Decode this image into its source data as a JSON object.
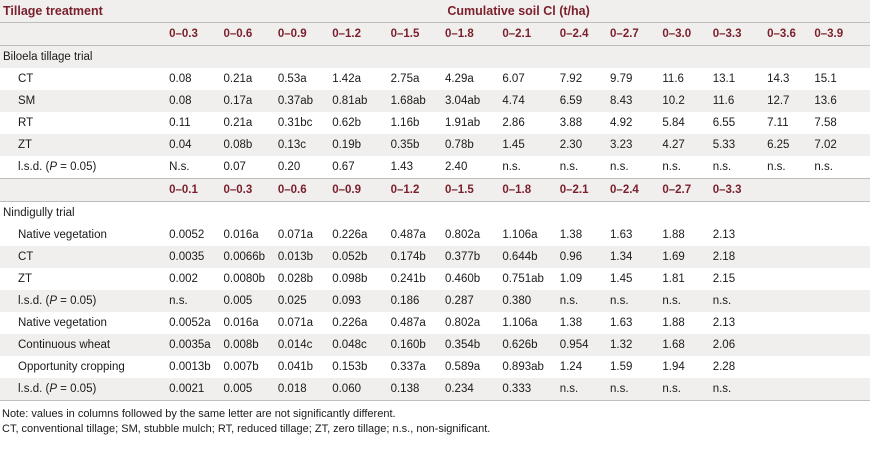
{
  "header": {
    "tillage_treatment": "Tillage treatment",
    "cumulative": "Cumulative soil Cl (t/ha)"
  },
  "biloela": {
    "section_label": "Biloela tillage trial",
    "depths": [
      "0–0.3",
      "0–0.6",
      "0–0.9",
      "0–1.2",
      "0–1.5",
      "0–1.8",
      "0–2.1",
      "0–2.4",
      "0–2.7",
      "0–3.0",
      "0–3.3",
      "0–3.6",
      "0–3.9"
    ],
    "rows": [
      {
        "label": "CT",
        "values": [
          "0.08",
          "0.21a",
          "0.53a",
          "1.42a",
          "2.75a",
          "4.29a",
          "6.07",
          "7.92",
          "9.79",
          "11.6",
          "13.1",
          "14.3",
          "15.1"
        ]
      },
      {
        "label": "SM",
        "values": [
          "0.08",
          "0.17a",
          "0.37ab",
          "0.81ab",
          "1.68ab",
          "3.04ab",
          "4.74",
          "6.59",
          "8.43",
          "10.2",
          "11.6",
          "12.7",
          "13.6"
        ]
      },
      {
        "label": "RT",
        "values": [
          "0.11",
          "0.21a",
          "0.31bc",
          "0.62b",
          "1.16b",
          "1.91ab",
          "2.86",
          "3.88",
          "4.92",
          "5.84",
          "6.55",
          "7.11",
          "7.58"
        ]
      },
      {
        "label": "ZT",
        "values": [
          "0.04",
          "0.08b",
          "0.13c",
          "0.19b",
          "0.35b",
          "0.78b",
          "1.45",
          "2.30",
          "3.23",
          "4.27",
          "5.33",
          "6.25",
          "7.02"
        ]
      },
      {
        "label_prefix": "l.s.d. (",
        "label_var": "P",
        "label_suffix": " = 0.05)",
        "values": [
          "N.s.",
          "0.07",
          "0.20",
          "0.67",
          "1.43",
          "2.40",
          "n.s.",
          "n.s.",
          "n.s.",
          "n.s.",
          "n.s.",
          "n.s.",
          "n.s."
        ]
      }
    ]
  },
  "nindigully": {
    "section_label": "Nindigully trial",
    "depths": [
      "0–0.1",
      "0–0.3",
      "0–0.6",
      "0–0.9",
      "0–1.2",
      "0–1.5",
      "0–1.8",
      "0–2.1",
      "0–2.4",
      "0–2.7",
      "0–3.3"
    ],
    "rows": [
      {
        "label": "Native vegetation",
        "values": [
          "0.0052",
          "0.016a",
          "0.071a",
          "0.226a",
          "0.487a",
          "0.802a",
          "1.106a",
          "1.38",
          "1.63",
          "1.88",
          "2.13"
        ]
      },
      {
        "label": "CT",
        "values": [
          "0.0035",
          "0.0066b",
          "0.013b",
          "0.052b",
          "0.174b",
          "0.377b",
          "0.644b",
          "0.96",
          "1.34",
          "1.69",
          "2.18"
        ]
      },
      {
        "label": "ZT",
        "values": [
          "0.002",
          "0.0080b",
          "0.028b",
          "0.098b",
          "0.241b",
          "0.460b",
          "0.751ab",
          "1.09",
          "1.45",
          "1.81",
          "2.15"
        ]
      },
      {
        "label_prefix": "l.s.d. (",
        "label_var": "P",
        "label_suffix": " = 0.05)",
        "values": [
          "n.s.",
          "0.005",
          "0.025",
          "0.093",
          "0.186",
          "0.287",
          "0.380",
          "n.s.",
          "n.s.",
          "n.s.",
          "n.s."
        ]
      },
      {
        "label": "Native vegetation",
        "values": [
          "0.0052a",
          "0.016a",
          "0.071a",
          "0.226a",
          "0.487a",
          "0.802a",
          "1.106a",
          "1.38",
          "1.63",
          "1.88",
          "2.13"
        ]
      },
      {
        "label": "Continuous wheat",
        "values": [
          "0.0035a",
          "0.008b",
          "0.014c",
          "0.048c",
          "0.160b",
          "0.354b",
          "0.626b",
          "0.954",
          "1.32",
          "1.68",
          "2.06"
        ]
      },
      {
        "label": "Opportunity cropping",
        "values": [
          "0.0013b",
          "0.007b",
          "0.041b",
          "0.153b",
          "0.337a",
          "0.589a",
          "0.893ab",
          "1.24",
          "1.59",
          "1.94",
          "2.28"
        ]
      },
      {
        "label_prefix": "l.s.d. (",
        "label_var": "P",
        "label_suffix": " = 0.05)",
        "values": [
          "0.0021",
          "0.005",
          "0.018",
          "0.060",
          "0.138",
          "0.234",
          "0.333",
          "n.s.",
          "n.s.",
          "n.s.",
          "n.s."
        ]
      }
    ]
  },
  "notes": [
    "Note: values in columns followed by the same letter are not significantly different.",
    "CT, conventional tillage; SM, stubble mulch; RT, reduced tillage; ZT, zero tillage; n.s., non-significant."
  ]
}
